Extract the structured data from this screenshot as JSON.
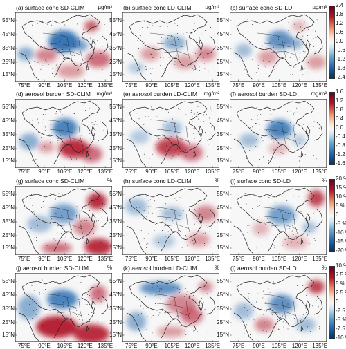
{
  "colors": {
    "positive": "#b2182b",
    "negative": "#2166ac",
    "neutral": "#f7f7f7",
    "coast": "#222222"
  },
  "axes": {
    "lat_ticks": [
      "55°N",
      "45°N",
      "35°N",
      "25°N",
      "15°N"
    ],
    "lon_ticks": [
      "75°E",
      "90°E",
      "105°E",
      "120°E",
      "135°E"
    ]
  },
  "rows": [
    {
      "unit_label": "µg/m³",
      "colorbar_ticks": [
        "2.4",
        "1.8",
        "1.2",
        "0.6",
        "0.0",
        "-0.6",
        "-1.2",
        "-1.8",
        "-2.4"
      ]
    },
    {
      "unit_label": "mg/m²",
      "colorbar_ticks": [
        "1.6",
        "1.2",
        "0.8",
        "0.4",
        "0.0",
        "-0.4",
        "-0.8",
        "-1.2",
        "-1.6"
      ]
    },
    {
      "unit_label": "%",
      "colorbar_ticks": [
        "20 %",
        "15 %",
        "10 %",
        "5 %",
        "0",
        "-5 %",
        "-10 %",
        "-15 %",
        "-20 %"
      ]
    },
    {
      "unit_label": "%",
      "colorbar_ticks": [
        "10 %",
        "7.5 %",
        "5 %",
        "2.5 %",
        "0",
        "-2.5 %",
        "-5 %",
        "-7.5 %",
        "-10 %"
      ]
    }
  ],
  "panels": [
    {
      "title": "(a) surface conc SD-CLIM"
    },
    {
      "title": "(b) surface conc LD-CLIM"
    },
    {
      "title": "(c) surface conc SD-LD"
    },
    {
      "title": "(d) aerosol burden SD-CLIM"
    },
    {
      "title": "(e) aerosol burden LD-CLIM"
    },
    {
      "title": "(f) aerosol burden SD-LD"
    },
    {
      "title": "(g) surface conc SD-CLIM"
    },
    {
      "title": "(h) surface conc LD-CLIM"
    },
    {
      "title": "(i) surface conc SD-LD"
    },
    {
      "title": "(j) aerosol burden SD-CLIM"
    },
    {
      "title": "(k) aerosol burden LD-CLIM"
    },
    {
      "title": "(l) aerosol burden SD-LD"
    }
  ]
}
